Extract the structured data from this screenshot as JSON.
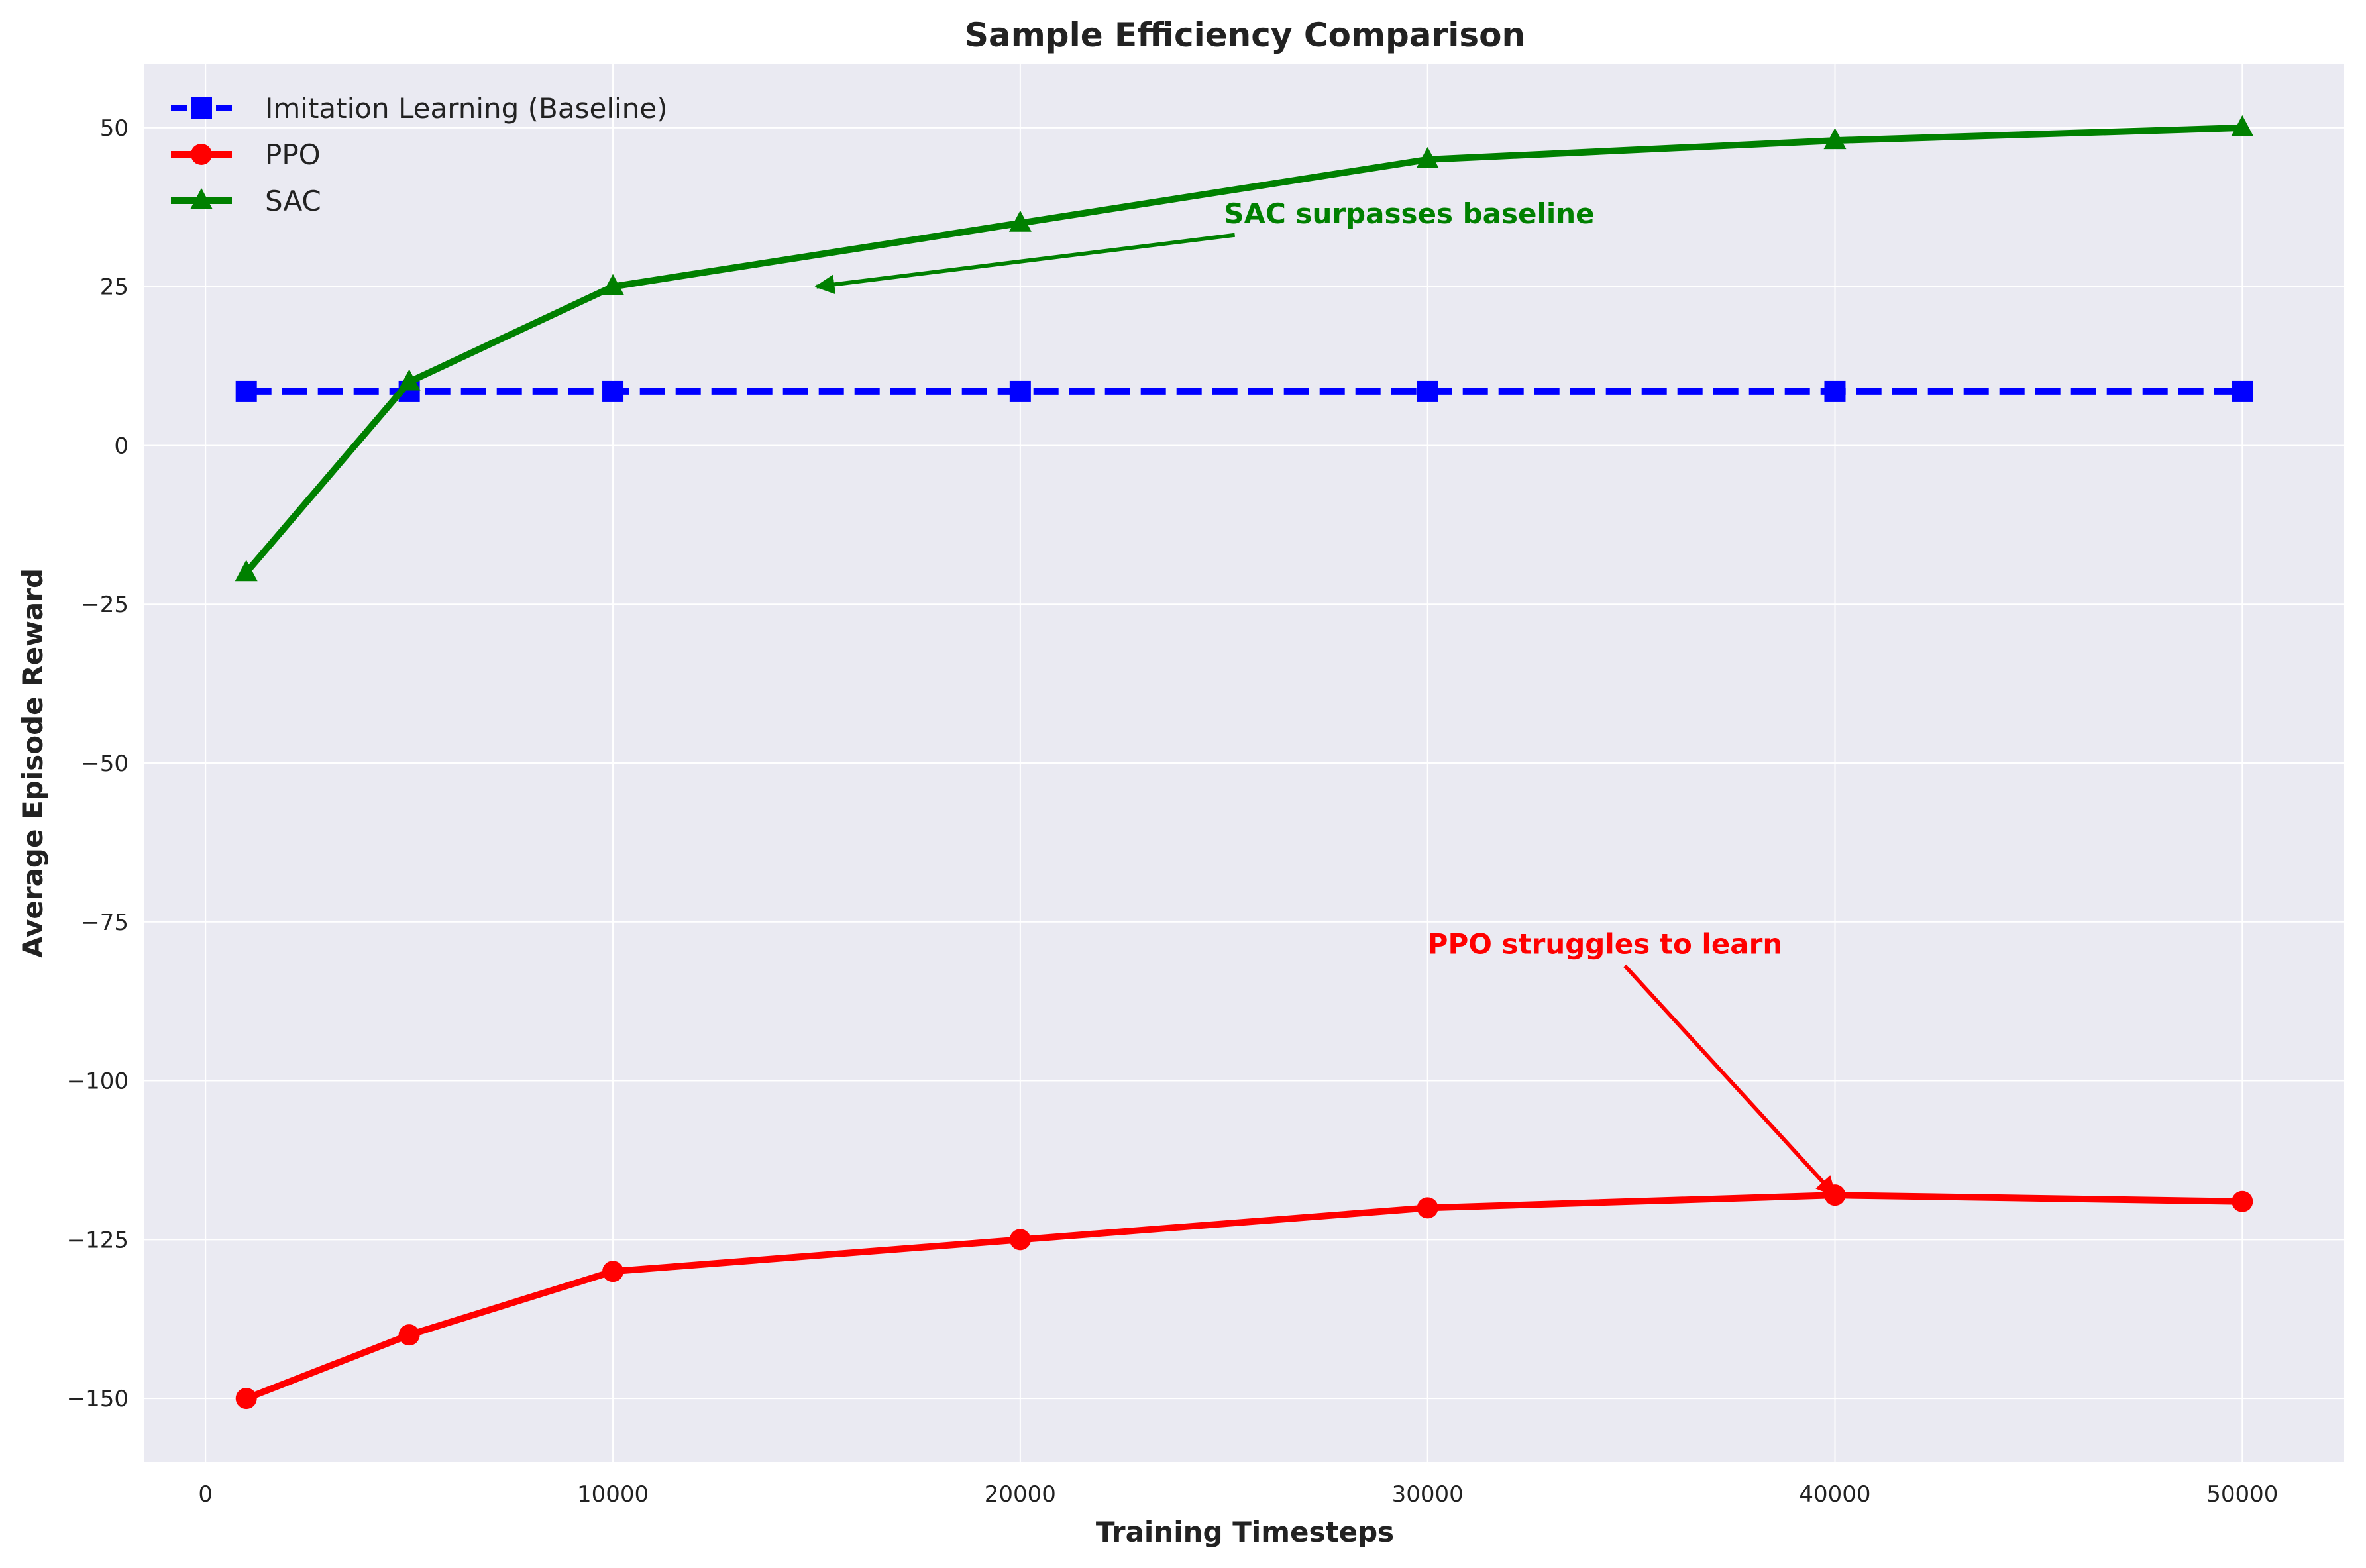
{
  "chart_data": {
    "type": "line",
    "title": "Sample Efficiency Comparison",
    "xlabel": "Training Timesteps",
    "ylabel": "Average Episode Reward",
    "xlim": [
      -1500,
      52500
    ],
    "ylim": [
      -160,
      60
    ],
    "x_ticks": [
      0,
      10000,
      20000,
      30000,
      40000,
      50000
    ],
    "y_ticks": [
      -150,
      -125,
      -100,
      -75,
      -50,
      -25,
      0,
      25,
      50
    ],
    "y_tick_labels": [
      "−150",
      "−125",
      "−100",
      "−75",
      "−50",
      "−25",
      "0",
      "25",
      "50"
    ],
    "grid": true,
    "legend_position": "top-left",
    "series": [
      {
        "name": "Imitation Learning (Baseline)",
        "color": "#0000ff",
        "marker": "square",
        "linestyle": "dashed",
        "x": [
          1000,
          5000,
          10000,
          20000,
          30000,
          40000,
          50000
        ],
        "y": [
          8.5,
          8.5,
          8.5,
          8.5,
          8.5,
          8.5,
          8.5
        ]
      },
      {
        "name": "PPO",
        "color": "#ff0000",
        "marker": "circle",
        "linestyle": "solid",
        "x": [
          1000,
          5000,
          10000,
          20000,
          30000,
          40000,
          50000
        ],
        "y": [
          -150,
          -140,
          -130,
          -125,
          -120,
          -118,
          -119
        ]
      },
      {
        "name": "SAC",
        "color": "#008000",
        "marker": "triangle",
        "linestyle": "solid",
        "x": [
          1000,
          5000,
          10000,
          20000,
          30000,
          40000,
          50000
        ],
        "y": [
          -20,
          10,
          25,
          35,
          45,
          48,
          50
        ]
      }
    ],
    "annotations": [
      {
        "text": "SAC surpasses baseline",
        "color": "#008000",
        "text_xy": [
          25000,
          35
        ],
        "arrow_to": [
          15000,
          25
        ]
      },
      {
        "text": "PPO struggles to learn",
        "color": "#ff0000",
        "text_xy": [
          30000,
          -80
        ],
        "arrow_to": [
          40000,
          -118
        ]
      }
    ]
  }
}
